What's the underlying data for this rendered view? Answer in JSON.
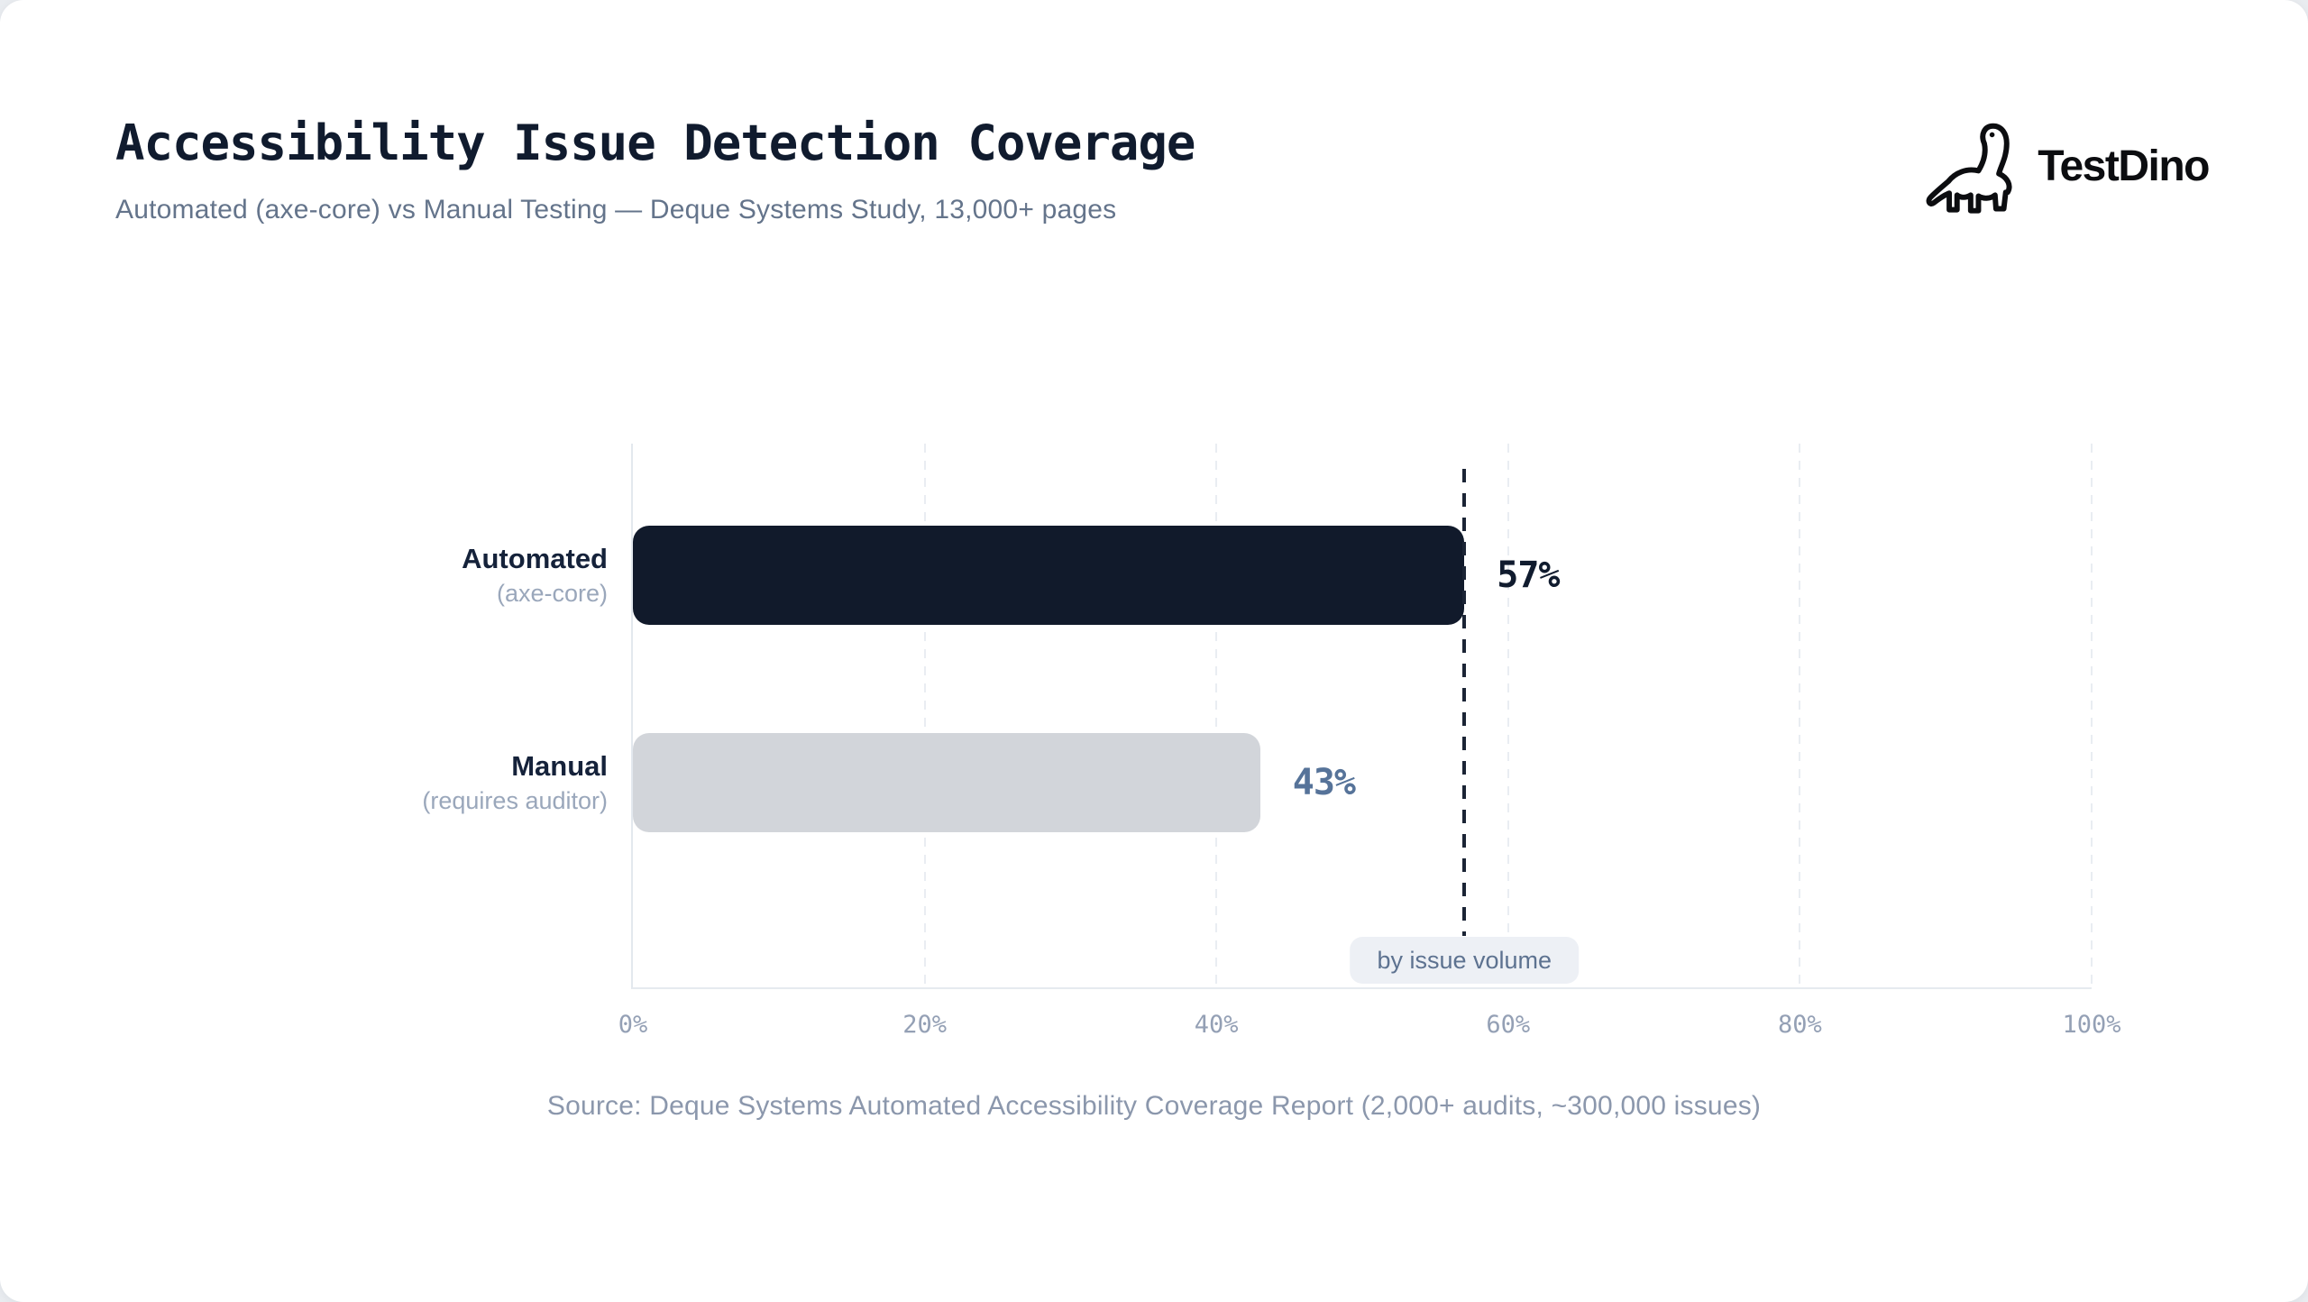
{
  "header": {
    "title": "Accessibility Issue Detection Coverage",
    "subtitle": "Automated (axe-core) vs Manual Testing — Deque Systems Study, 13,000+ pages"
  },
  "logo": {
    "brand": "TestDino",
    "icon": "dinosaur-line-art"
  },
  "chart_data": {
    "type": "bar",
    "orientation": "horizontal",
    "title": "Accessibility Issue Detection Coverage",
    "categories": [
      "Automated",
      "Manual"
    ],
    "category_sublabels": [
      "(axe-core)",
      "(requires auditor)"
    ],
    "values": [
      57,
      43
    ],
    "value_labels": [
      "57%",
      "43%"
    ],
    "bar_colors": [
      "#111a2b",
      "#d2d5da"
    ],
    "value_label_colors": [
      "#101b2e",
      "#567399"
    ],
    "xlim": [
      0,
      100
    ],
    "x_tick_values": [
      0,
      20,
      40,
      60,
      80,
      100
    ],
    "x_tick_labels": [
      "0%",
      "20%",
      "40%",
      "60%",
      "80%",
      "100%"
    ],
    "grid": "vertical-dashed",
    "legend_position": "none",
    "benchmark_line": {
      "value": 57,
      "style": "dashed",
      "label": "by issue volume"
    }
  },
  "footer": {
    "source": "Source: Deque Systems Automated Accessibility Coverage Report (2,000+ audits, ~300,000 issues)"
  },
  "colors": {
    "accent_dark": "#111a2b",
    "accent_gray": "#d2d5da",
    "badge_bg": "#edf0f5",
    "grid": "#e9edf2"
  }
}
